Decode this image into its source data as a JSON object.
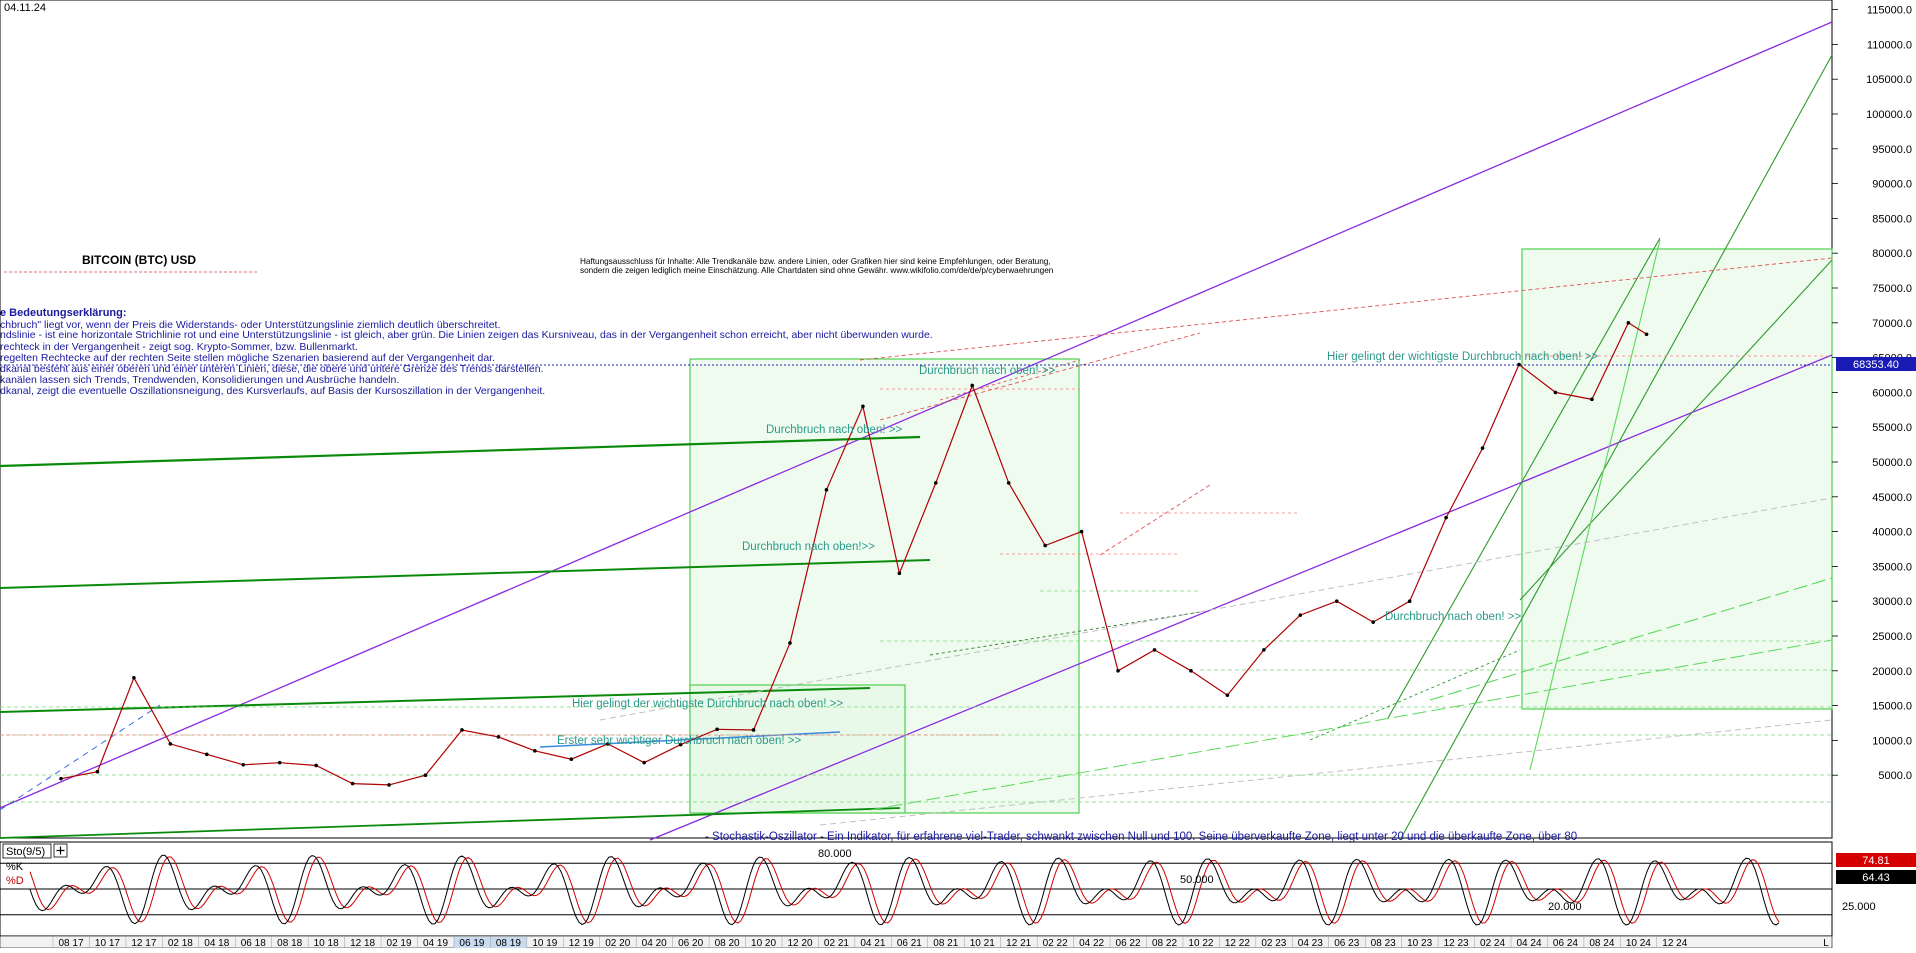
{
  "header": {
    "date": "04.11.24"
  },
  "chart_data": {
    "type": "line",
    "title": "BITCOIN (BTC) USD",
    "subtitle": "Haftungsausschluss für Inhalte: Alle Trendkanäle bzw. andere Linien, oder Grafiken hier sind keine Empfehlungen, oder Beratung, sondern die zeigen lediglich meine Einschätzung. Alle Chartdaten sind ohne Gewähr. www.wikifolio.com/de/de/p/cyberwaehrungen",
    "subtitle_lines": [
      "Haftungsausschluss für Inhalte: Alle Trendkanäle bzw. andere Linien, oder Grafiken hier sind keine Empfehlungen, oder Beratung,",
      "sondern die zeigen lediglich meine Einschätzung. Alle Chartdaten sind ohne Gewähr. www.wikifolio.com/de/de/p/cyberwaehrungen"
    ],
    "legend_title": "e Bedeutungserklärung:",
    "legend_lines": [
      "chbruch\" liegt vor, wenn der Preis die Widerstands- oder Unterstützungslinie ziemlich deutlich überschreitet.",
      "ndslinie - ist eine horizontale Strichlinie rot und eine Unterstützungslinie - ist gleich, aber grün. Die Linien zeigen das Kursniveau, das in der Vergangenheit schon erreicht, aber nicht überwunden wurde.",
      "rechteck in der Vergangenheit - zeigt sog. Krypto-Sommer, bzw. Bullenmarkt.",
      "regelten Rechtecke auf der rechten Seite stellen mögliche Szenarien basierend auf der Vergangenheit dar.",
      "dkanal besteht aus einer oberen und einer unteren Linien, diese, die obere und untere Grenze des Trends darstellen.",
      "kanälen lassen sich Trends, Trendwenden, Konsolidierungen und Ausbrüche handeln.",
      "dkanal, zeigt die eventuelle Oszillationsneigung, des Kursverlaufs, auf Basis der Kursoszillation in der Vergangenheit."
    ],
    "annotations": [
      "Durchbruch nach oben! >>",
      "Durchbruch nach oben! >>",
      "Durchbruch nach oben!>>",
      "Durchbruch nach oben! >>",
      "Hier gelingt der wichtigste Durchbruch nach oben! >>",
      "Erster sehr wichtiger Durchbruch nach oben! >>",
      "Hier gelingt der wichtigste Durchbruch nach oben! >>"
    ],
    "oscillator_note": "- Stochastik-Oszillator - Ein Indikator, für erfahrene viel-Trader, schwankt zwischen Null und 100. Seine überverkaufte Zone, liegt unter 20 und die überkaufte Zone, über 80",
    "yaxis": {
      "ticks": [
        "115000.0",
        "110000.0",
        "105000.0",
        "100000.0",
        "95000.0",
        "90000.0",
        "85000.0",
        "80000.0",
        "75000.0",
        "70000.0",
        "65000.0",
        "60000.0",
        "55000.0",
        "50000.0",
        "45000.0",
        "40000.0",
        "35000.0",
        "30000.0",
        "25000.0",
        "20000.0",
        "15000.0",
        "10000.0",
        "5000.0"
      ],
      "ylim": [
        0,
        118000
      ]
    },
    "last_price": "68353.40",
    "x_ticks": [
      "08 17",
      "10 17",
      "12 17",
      "02 18",
      "04 18",
      "06 18",
      "08 18",
      "10 18",
      "12 18",
      "02 19",
      "04 19",
      "06 19",
      "08 19",
      "10 19",
      "12 19",
      "02 20",
      "04 20",
      "06 20",
      "08 20",
      "10 20",
      "12 20",
      "02 21",
      "04 21",
      "06 21",
      "08 21",
      "10 21",
      "12 21",
      "02 22",
      "04 22",
      "06 22",
      "08 22",
      "10 22",
      "12 22",
      "02 23",
      "04 23",
      "06 23",
      "08 23",
      "10 23",
      "12 23",
      "02 24",
      "04 24",
      "06 24",
      "08 24",
      "10 24",
      "12 24"
    ],
    "x_axis_end": "L",
    "series": [
      {
        "name": "",
        "x": [
          "08 17",
          "10 17",
          "12 17",
          "02 18",
          "04 18",
          "06 18",
          "08 18",
          "10 18",
          "12 18",
          "02 19",
          "04 19",
          "06 19",
          "08 19",
          "10 19",
          "12 19",
          "02 20",
          "04 20",
          "06 20",
          "08 20",
          "10 20",
          "12 20",
          "02 21",
          "04 21",
          "06 21",
          "08 21",
          "10 21",
          "12 21",
          "02 22",
          "04 22",
          "06 22",
          "08 22",
          "10 22",
          "12 22",
          "02 23",
          "04 23",
          "06 23",
          "08 23",
          "10 23",
          "12 23",
          "02 24",
          "04 24",
          "06 24",
          "08 24",
          "10 24",
          "11 24"
        ],
        "values": [
          4500,
          5500,
          19000,
          9500,
          8000,
          6500,
          6800,
          6400,
          3800,
          3600,
          5000,
          11500,
          10500,
          8500,
          7300,
          9500,
          6800,
          9400,
          11600,
          11500,
          24000,
          46000,
          58000,
          34000,
          47000,
          61000,
          47000,
          38000,
          40000,
          20000,
          23000,
          20000,
          16500,
          23000,
          28000,
          30000,
          27000,
          30000,
          42000,
          52000,
          64000,
          60000,
          59000,
          70000,
          68353
        ]
      }
    ],
    "stochastic": {
      "label": "Sto(9/5)",
      "k_label": "%K",
      "d_label": "%D",
      "k_value": "74.81",
      "d_value": "64.43",
      "levels": [
        "80.000",
        "50.000",
        "20.000"
      ],
      "axis_label": "25.000"
    }
  }
}
